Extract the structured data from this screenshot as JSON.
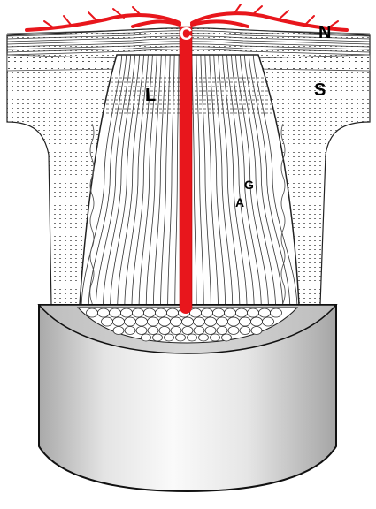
{
  "labels": {
    "c": "C",
    "n": "N",
    "l": "L",
    "s": "S",
    "g": "G",
    "a": "A"
  },
  "colors": {
    "vessel": "#e8161c",
    "stroke": "#111111",
    "background": "#ffffff",
    "stroma": "#f4f4f4",
    "cylinder_light": "#f2f2f2",
    "cylinder_dark": "#b9b9b9"
  }
}
